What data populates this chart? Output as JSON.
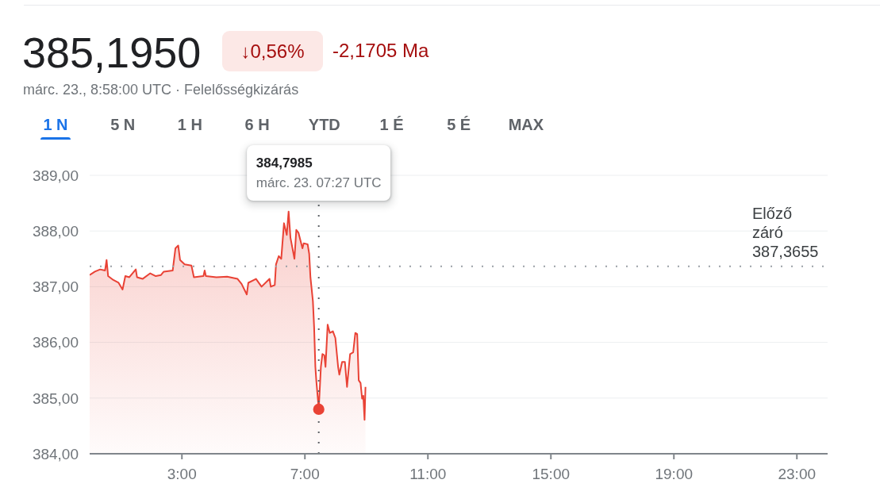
{
  "chart_data": {
    "type": "area",
    "title": "385,1950",
    "subtitle": "márc. 23., 8:58:00 UTC · Felelősségkizárás",
    "annotations": [
      "↓0,56%",
      "-2,1705 Ma",
      "1 N",
      "5 N",
      "1 H",
      "6 H",
      "YTD",
      "1 É",
      "5 É",
      "MAX",
      "384,7985\nmárc. 23. 07:27 UTC"
    ],
    "xlim": [
      0,
      24
    ],
    "xticks": [
      {
        "value": 3,
        "label": "3:00"
      },
      {
        "value": 7,
        "label": "7:00"
      },
      {
        "value": 11,
        "label": "11:00"
      },
      {
        "value": 15,
        "label": "15:00"
      },
      {
        "value": 19,
        "label": "19:00"
      },
      {
        "value": 23,
        "label": "23:00"
      }
    ],
    "ylim": [
      384,
      389
    ],
    "yticks": [
      {
        "value": 384,
        "label": "384,00"
      },
      {
        "value": 385,
        "label": "385,00"
      },
      {
        "value": 386,
        "label": "386,00"
      },
      {
        "value": 387,
        "label": "387,00"
      },
      {
        "value": 388,
        "label": "388,00"
      },
      {
        "value": 389,
        "label": "389,00"
      }
    ],
    "grid": "y",
    "ref_lines": [
      {
        "axis": "y",
        "value": 387.3655,
        "label": "Előző záró 387,3655",
        "color": "#9aa0a6",
        "line_style": "dotted"
      },
      {
        "axis": "x",
        "value": 7.45,
        "color": "#5f6368",
        "line_style": "dotted"
      }
    ],
    "series": [
      {
        "color": "#e94235",
        "x": [
          0,
          0.17,
          0.34,
          0.5,
          0.55,
          0.6,
          0.77,
          0.94,
          1.07,
          1.16,
          1.29,
          1.5,
          1.54,
          1.72,
          1.97,
          2.15,
          2.32,
          2.41,
          2.7,
          2.79,
          2.88,
          2.94,
          3.09,
          3.31,
          3.39,
          3.7,
          3.74,
          3.78,
          4.12,
          4.47,
          4.81,
          4.94,
          5.11,
          5.16,
          5.41,
          5.59,
          5.85,
          5.89,
          6.02,
          6.06,
          6.15,
          6.23,
          6.32,
          6.41,
          6.47,
          6.53,
          6.66,
          6.72,
          6.79,
          6.92,
          6.96,
          7.09,
          7.14,
          7.18,
          7.26,
          7.3,
          7.34,
          7.37,
          7.45,
          7.52,
          7.57,
          7.63,
          7.67,
          7.74,
          7.81,
          7.91,
          7.99,
          8.08,
          8.12,
          8.21,
          8.3,
          8.37,
          8.43,
          8.47,
          8.57,
          8.64,
          8.7,
          8.75,
          8.81,
          8.86,
          8.9,
          8.94,
          8.97
        ],
        "values": [
          387.21,
          387.27,
          387.31,
          387.29,
          387.48,
          387.19,
          387.12,
          387.07,
          386.95,
          387.19,
          387.17,
          387.31,
          387.17,
          387.14,
          387.24,
          387.19,
          387.21,
          387.27,
          387.29,
          387.69,
          387.74,
          387.48,
          387.4,
          387.38,
          387.17,
          387.19,
          387.29,
          387.19,
          387.17,
          387.18,
          387.14,
          387.05,
          386.86,
          387.07,
          387.14,
          387,
          387.14,
          387,
          387.03,
          387.4,
          387.55,
          387.5,
          388.14,
          387.93,
          388.35,
          387.88,
          387.5,
          388.02,
          387.97,
          387.69,
          387.78,
          387.76,
          387.59,
          387.17,
          386.74,
          386.27,
          385.56,
          385.32,
          384.8,
          385.56,
          385.79,
          385.77,
          385.56,
          386.32,
          386.17,
          386.2,
          386.08,
          385.56,
          385.42,
          385.65,
          385.65,
          385.2,
          385.56,
          385.79,
          385.82,
          386.17,
          386.15,
          385.32,
          385.27,
          384.99,
          385.04,
          384.61,
          385.2
        ]
      },
      {
        "type": "scatter",
        "color": "#e94235",
        "marker": "circle",
        "x": [
          7.45
        ],
        "values": [
          384.7985
        ]
      }
    ]
  }
}
